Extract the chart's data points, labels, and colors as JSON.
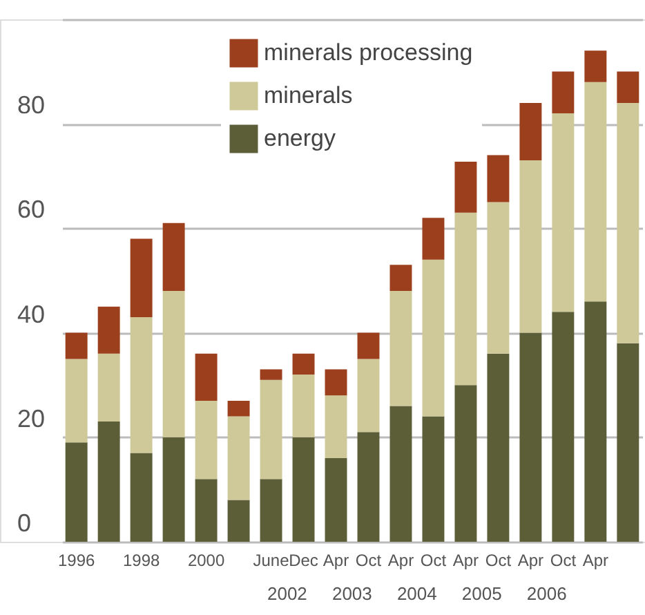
{
  "chart_data": {
    "type": "bar",
    "stacked": true,
    "categories": [
      "1996",
      null,
      "1998",
      null,
      "2000",
      null,
      "June",
      "Dec",
      "Apr",
      "Oct",
      "Apr",
      "Oct",
      "Apr",
      "Oct",
      "Apr",
      "Oct",
      "Apr",
      null
    ],
    "series": [
      {
        "name": "energy",
        "color": "#5c5e38",
        "values": [
          19,
          23,
          17,
          20,
          12,
          8,
          12,
          20,
          16,
          21,
          26,
          24,
          30,
          36,
          40,
          44,
          46,
          38
        ]
      },
      {
        "name": "minerals",
        "color": "#cfc898",
        "values": [
          16,
          13,
          26,
          28,
          15,
          16,
          19,
          12,
          12,
          14,
          22,
          30,
          33,
          29,
          33,
          38,
          42,
          46
        ]
      },
      {
        "name": "minerals processing",
        "color": "#9b3f1c",
        "values": [
          5,
          9,
          15,
          13,
          9,
          3,
          2,
          4,
          5,
          5,
          5,
          8,
          10,
          9,
          11,
          8,
          6,
          6
        ]
      }
    ],
    "annotations": [
      "2002",
      "2003",
      "2004",
      "2005",
      "2006"
    ],
    "ylim": [
      0,
      100
    ],
    "yticks": [
      0,
      20,
      40,
      60,
      80,
      {
        "value": 100,
        "label": null
      }
    ],
    "grid": "y",
    "legend": "top"
  }
}
